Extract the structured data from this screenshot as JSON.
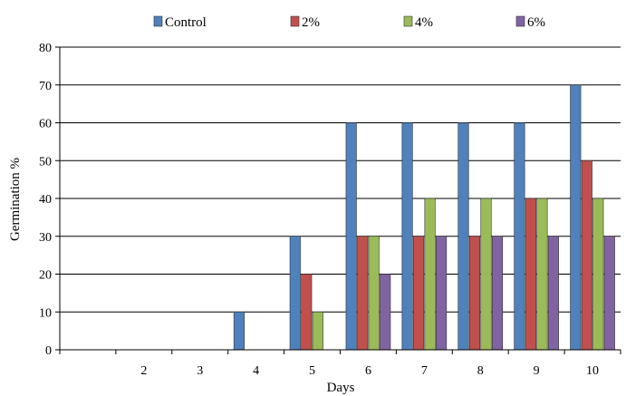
{
  "chart_data": {
    "type": "bar",
    "title": "",
    "xlabel": "Days",
    "ylabel": "Germination %",
    "categories": [
      "",
      "2",
      "3",
      "4",
      "5",
      "6",
      "7",
      "8",
      "9",
      "10"
    ],
    "ylim": [
      0,
      80
    ],
    "yticks": [
      0,
      10,
      20,
      30,
      40,
      50,
      60,
      70,
      80
    ],
    "grid": "horizontal",
    "legend_position": "top",
    "series": [
      {
        "name": "Control",
        "color": "#4f81bd",
        "values": [
          0,
          0,
          0,
          10,
          30,
          60,
          60,
          60,
          60,
          70
        ]
      },
      {
        "name": "2%",
        "color": "#c0504d",
        "values": [
          0,
          0,
          0,
          0,
          20,
          30,
          30,
          30,
          40,
          50
        ]
      },
      {
        "name": "4%",
        "color": "#9bbb59",
        "values": [
          0,
          0,
          0,
          0,
          10,
          30,
          40,
          40,
          40,
          40
        ]
      },
      {
        "name": "6%",
        "color": "#8064a2",
        "values": [
          0,
          0,
          0,
          0,
          0,
          20,
          30,
          30,
          30,
          30
        ]
      }
    ]
  }
}
